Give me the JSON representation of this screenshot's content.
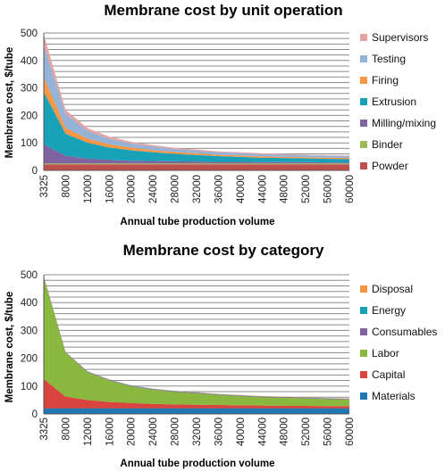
{
  "chart_data": [
    {
      "type": "area",
      "stacked": true,
      "title": "Membrane cost by unit operation",
      "xlabel": "Annual tube production volume",
      "ylabel": "Membrane cost, $/tube",
      "ylim": [
        0,
        500
      ],
      "yticks": [
        0,
        100,
        200,
        300,
        400,
        500
      ],
      "grid": true,
      "legend_position": "right",
      "x": [
        3325,
        8000,
        12000,
        16000,
        20000,
        24000,
        28000,
        32000,
        36000,
        40000,
        44000,
        48000,
        52000,
        56000,
        60000
      ],
      "series": [
        {
          "name": "Powder",
          "color": "#C0504D",
          "values": [
            22,
            22,
            22,
            22,
            22,
            22,
            22,
            22,
            22,
            22,
            22,
            22,
            22,
            22,
            22
          ]
        },
        {
          "name": "Binder",
          "color": "#9BBB59",
          "values": [
            3,
            3,
            3,
            3,
            3,
            3,
            3,
            3,
            3,
            3,
            3,
            3,
            3,
            3,
            3
          ]
        },
        {
          "name": "Milling/mixing",
          "color": "#8064A2",
          "values": [
            70,
            28,
            18,
            13,
            10,
            9,
            8,
            7,
            6,
            6,
            5,
            5,
            5,
            4,
            4
          ]
        },
        {
          "name": "Extrusion",
          "color": "#17A2B8",
          "values": [
            190,
            80,
            58,
            45,
            38,
            32,
            27,
            24,
            21,
            18,
            16,
            15,
            14,
            13,
            12
          ]
        },
        {
          "name": "Firing",
          "color": "#F79646",
          "values": [
            55,
            22,
            15,
            12,
            10,
            8,
            7,
            6,
            5,
            5,
            5,
            4,
            4,
            4,
            4
          ]
        },
        {
          "name": "Testing",
          "color": "#95B3D7",
          "values": [
            115,
            50,
            28,
            20,
            15,
            13,
            11,
            10,
            9,
            9,
            8,
            8,
            7,
            7,
            7
          ]
        },
        {
          "name": "Supervisors",
          "color": "#E6A3A3",
          "values": [
            40,
            15,
            10,
            8,
            6,
            5,
            4,
            4,
            3,
            3,
            3,
            3,
            2,
            2,
            2
          ]
        }
      ]
    },
    {
      "type": "area",
      "stacked": true,
      "title": "Membrane cost by category",
      "xlabel": "Annual tube production volume",
      "ylabel": "Membrane cost, $/tube",
      "ylim": [
        0,
        500
      ],
      "yticks": [
        0,
        100,
        200,
        300,
        400,
        500
      ],
      "grid": true,
      "legend_position": "right",
      "x": [
        3325,
        8000,
        12000,
        16000,
        20000,
        24000,
        28000,
        32000,
        36000,
        40000,
        44000,
        48000,
        52000,
        56000,
        60000
      ],
      "series": [
        {
          "name": "Materials",
          "color": "#1F77B4",
          "values": [
            20,
            20,
            20,
            20,
            20,
            20,
            20,
            20,
            20,
            20,
            20,
            20,
            20,
            20,
            20
          ]
        },
        {
          "name": "Capital",
          "color": "#D9443F",
          "values": [
            105,
            42,
            30,
            23,
            19,
            16,
            14,
            13,
            12,
            11,
            10,
            9,
            9,
            8,
            8
          ]
        },
        {
          "name": "Labor",
          "color": "#8AB83F",
          "values": [
            365,
            157,
            100,
            77,
            60,
            51,
            45,
            41,
            36,
            33,
            30,
            29,
            27,
            25,
            24
          ]
        },
        {
          "name": "Consumables",
          "color": "#8064A2",
          "values": [
            3,
            2,
            2,
            2,
            2,
            2,
            2,
            2,
            2,
            2,
            2,
            2,
            2,
            2,
            2
          ]
        },
        {
          "name": "Energy",
          "color": "#17A2B8",
          "values": [
            1,
            1,
            1,
            1,
            1,
            1,
            1,
            1,
            1,
            1,
            1,
            1,
            1,
            1,
            1
          ]
        },
        {
          "name": "Disposal",
          "color": "#F79646",
          "values": [
            1,
            1,
            1,
            1,
            1,
            1,
            1,
            1,
            1,
            1,
            1,
            1,
            1,
            1,
            1
          ]
        }
      ]
    }
  ]
}
